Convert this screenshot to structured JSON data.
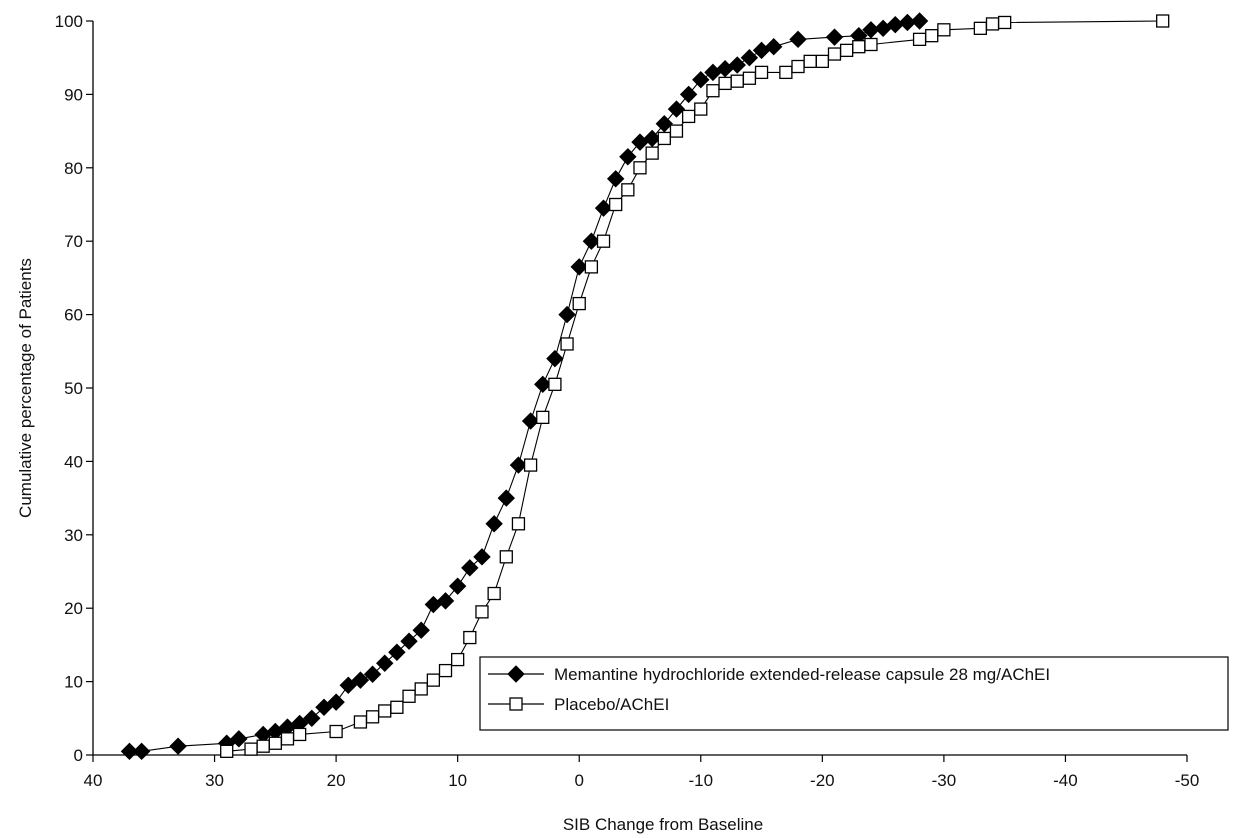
{
  "colors": {
    "axis": "#000000",
    "series_a": "#000000",
    "series_b": "#000000",
    "background": "#ffffff"
  },
  "chart_data": {
    "type": "line",
    "title": "",
    "xlabel": "SIB Change from Baseline",
    "ylabel": "Cumulative percentage of Patients",
    "xlim": [
      40,
      -50
    ],
    "ylim": [
      0,
      100
    ],
    "x_reversed": true,
    "x_ticks": [
      40,
      30,
      20,
      10,
      0,
      -10,
      -20,
      -30,
      -40,
      -50
    ],
    "x_tick_labels": [
      "40",
      "30",
      "20",
      "10",
      "0",
      "-10",
      "-20",
      "-30",
      "-40",
      "-50"
    ],
    "y_ticks": [
      0,
      10,
      20,
      30,
      40,
      50,
      60,
      70,
      80,
      90,
      100
    ],
    "y_tick_labels": [
      "0",
      "10",
      "20",
      "30",
      "40",
      "50",
      "60",
      "70",
      "80",
      "90",
      "100"
    ],
    "grid": false,
    "legend_position": "bottom-right",
    "series": [
      {
        "name": "Memantine hydrochloride extended-release capsule 28 mg/AChEI",
        "marker": "filled-diamond",
        "points": [
          [
            37,
            0.5
          ],
          [
            36,
            0.5
          ],
          [
            33,
            1.2
          ],
          [
            29,
            1.6
          ],
          [
            28,
            2.2
          ],
          [
            26,
            2.8
          ],
          [
            25,
            3.2
          ],
          [
            24,
            3.8
          ],
          [
            23,
            4.3
          ],
          [
            22,
            5.0
          ],
          [
            21,
            6.5
          ],
          [
            20,
            7.2
          ],
          [
            19,
            9.5
          ],
          [
            18,
            10.2
          ],
          [
            17,
            11.0
          ],
          [
            16,
            12.5
          ],
          [
            15,
            14.0
          ],
          [
            14,
            15.5
          ],
          [
            13,
            17.0
          ],
          [
            12,
            20.5
          ],
          [
            11,
            21.0
          ],
          [
            10,
            23.0
          ],
          [
            9,
            25.5
          ],
          [
            8,
            27.0
          ],
          [
            7,
            31.5
          ],
          [
            6,
            35.0
          ],
          [
            5,
            39.5
          ],
          [
            4,
            45.5
          ],
          [
            3,
            50.5
          ],
          [
            2,
            54.0
          ],
          [
            1,
            60.0
          ],
          [
            0,
            66.5
          ],
          [
            -1,
            70.0
          ],
          [
            -2,
            74.5
          ],
          [
            -3,
            78.5
          ],
          [
            -4,
            81.5
          ],
          [
            -5,
            83.5
          ],
          [
            -6,
            84.0
          ],
          [
            -7,
            86.0
          ],
          [
            -8,
            88.0
          ],
          [
            -9,
            90.0
          ],
          [
            -10,
            92.0
          ],
          [
            -11,
            93.0
          ],
          [
            -12,
            93.5
          ],
          [
            -13,
            94.0
          ],
          [
            -14,
            95.0
          ],
          [
            -15,
            96.0
          ],
          [
            -16,
            96.5
          ],
          [
            -18,
            97.5
          ],
          [
            -21,
            97.8
          ],
          [
            -23,
            98.0
          ],
          [
            -24,
            98.8
          ],
          [
            -25,
            99.0
          ],
          [
            -26,
            99.5
          ],
          [
            -27,
            99.8
          ],
          [
            -28,
            100.0
          ]
        ]
      },
      {
        "name": "Placebo/AChEI",
        "marker": "open-square",
        "points": [
          [
            29,
            0.5
          ],
          [
            27,
            0.8
          ],
          [
            26,
            1.2
          ],
          [
            25,
            1.6
          ],
          [
            24,
            2.2
          ],
          [
            23,
            2.8
          ],
          [
            20,
            3.2
          ],
          [
            18,
            4.5
          ],
          [
            17,
            5.2
          ],
          [
            16,
            6.0
          ],
          [
            15,
            6.5
          ],
          [
            14,
            8.0
          ],
          [
            13,
            9.0
          ],
          [
            12,
            10.2
          ],
          [
            11,
            11.5
          ],
          [
            10,
            13.0
          ],
          [
            9,
            16.0
          ],
          [
            8,
            19.5
          ],
          [
            7,
            22.0
          ],
          [
            6,
            27.0
          ],
          [
            5,
            31.5
          ],
          [
            4,
            39.5
          ],
          [
            3,
            46.0
          ],
          [
            2,
            50.5
          ],
          [
            1,
            56.0
          ],
          [
            0,
            61.5
          ],
          [
            -1,
            66.5
          ],
          [
            -2,
            70.0
          ],
          [
            -3,
            75.0
          ],
          [
            -4,
            77.0
          ],
          [
            -5,
            80.0
          ],
          [
            -6,
            82.0
          ],
          [
            -7,
            84.0
          ],
          [
            -8,
            85.0
          ],
          [
            -9,
            87.0
          ],
          [
            -10,
            88.0
          ],
          [
            -11,
            90.5
          ],
          [
            -12,
            91.5
          ],
          [
            -13,
            91.8
          ],
          [
            -14,
            92.2
          ],
          [
            -15,
            93.0
          ],
          [
            -17,
            93.0
          ],
          [
            -18,
            93.8
          ],
          [
            -19,
            94.5
          ],
          [
            -20,
            94.5
          ],
          [
            -21,
            95.5
          ],
          [
            -22,
            96.0
          ],
          [
            -23,
            96.5
          ],
          [
            -24,
            96.8
          ],
          [
            -28,
            97.5
          ],
          [
            -29,
            98.0
          ],
          [
            -30,
            98.8
          ],
          [
            -33,
            99.0
          ],
          [
            -34,
            99.6
          ],
          [
            -35,
            99.8
          ],
          [
            -48,
            100.0
          ]
        ]
      }
    ]
  }
}
